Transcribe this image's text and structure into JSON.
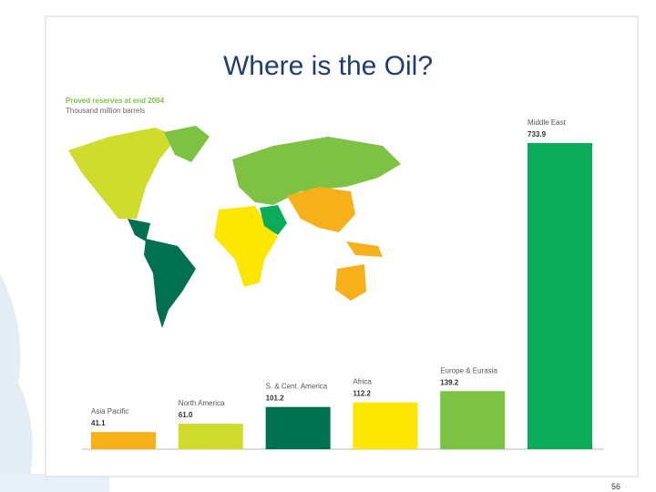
{
  "slide_title": "Where is the Oil?",
  "page_number": "56",
  "chart_data": {
    "type": "bar",
    "title": "Proved reserves at end 2004",
    "subtitle": "Thousand million barrels",
    "categories": [
      "Asia Pacific",
      "North America",
      "S. & Cent. America",
      "Africa",
      "Europe & Eurasia",
      "Middle East"
    ],
    "values": [
      41.1,
      61.0,
      101.2,
      112.2,
      139.2,
      733.9
    ],
    "value_labels": [
      "41.1",
      "61.0",
      "101.2",
      "112.2",
      "139.2",
      "733.9"
    ],
    "colors": [
      "#f6b11a",
      "#cfdc2b",
      "#00704f",
      "#fde600",
      "#7dc242",
      "#0aac5b"
    ]
  }
}
